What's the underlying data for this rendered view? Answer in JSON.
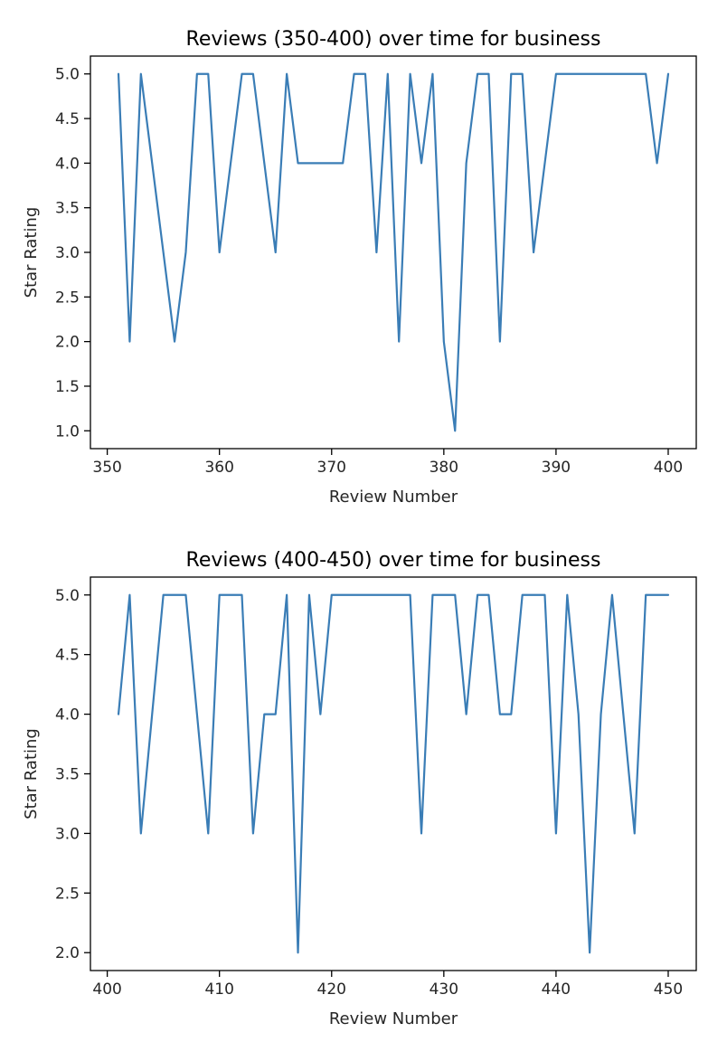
{
  "chart_data": [
    {
      "type": "line",
      "title": "Reviews (350-400) over time for business",
      "xlabel": "Review Number",
      "ylabel": "Star Rating",
      "xlim": [
        348.5,
        402.5
      ],
      "ylim": [
        0.8,
        5.2
      ],
      "xticks": [
        350,
        360,
        370,
        380,
        390,
        400
      ],
      "yticks": [
        1.0,
        1.5,
        2.0,
        2.5,
        3.0,
        3.5,
        4.0,
        4.5,
        5.0
      ],
      "x": [
        351,
        352,
        353,
        354,
        355,
        356,
        357,
        358,
        359,
        360,
        361,
        362,
        363,
        364,
        365,
        366,
        367,
        368,
        369,
        370,
        371,
        372,
        373,
        374,
        375,
        376,
        377,
        378,
        379,
        380,
        381,
        382,
        383,
        384,
        385,
        386,
        387,
        388,
        389,
        390,
        391,
        392,
        393,
        394,
        395,
        396,
        397,
        398,
        399,
        400
      ],
      "series": [
        {
          "name": "Star Rating",
          "color": "#3a7db6",
          "values": [
            5,
            2,
            5,
            4,
            3,
            2,
            3,
            5,
            5,
            3,
            4,
            5,
            5,
            4,
            3,
            5,
            4,
            4,
            4,
            4,
            4,
            5,
            5,
            3,
            5,
            2,
            5,
            4,
            5,
            2,
            1,
            4,
            5,
            5,
            2,
            5,
            5,
            3,
            4,
            5,
            5,
            5,
            5,
            5,
            5,
            5,
            5,
            5,
            4,
            5
          ]
        }
      ]
    },
    {
      "type": "line",
      "title": "Reviews (400-450) over time for business",
      "xlabel": "Review Number",
      "ylabel": "Star Rating",
      "xlim": [
        398.5,
        452.5
      ],
      "ylim": [
        1.85,
        5.15
      ],
      "xticks": [
        400,
        410,
        420,
        430,
        440,
        450
      ],
      "yticks": [
        2.0,
        2.5,
        3.0,
        3.5,
        4.0,
        4.5,
        5.0
      ],
      "x": [
        401,
        402,
        403,
        404,
        405,
        406,
        407,
        408,
        409,
        410,
        411,
        412,
        413,
        414,
        415,
        416,
        417,
        418,
        419,
        420,
        421,
        422,
        423,
        424,
        425,
        426,
        427,
        428,
        429,
        430,
        431,
        432,
        433,
        434,
        435,
        436,
        437,
        438,
        439,
        440,
        441,
        442,
        443,
        444,
        445,
        446,
        447,
        448,
        449,
        450
      ],
      "series": [
        {
          "name": "Star Rating",
          "color": "#3a7db6",
          "values": [
            4,
            5,
            3,
            4,
            5,
            5,
            5,
            4,
            3,
            5,
            5,
            5,
            3,
            4,
            4,
            5,
            2,
            5,
            4,
            5,
            5,
            5,
            5,
            5,
            5,
            5,
            5,
            3,
            5,
            5,
            5,
            4,
            5,
            5,
            4,
            4,
            5,
            5,
            5,
            3,
            5,
            4,
            2,
            4,
            5,
            4,
            3,
            5,
            5,
            5
          ]
        }
      ]
    }
  ]
}
